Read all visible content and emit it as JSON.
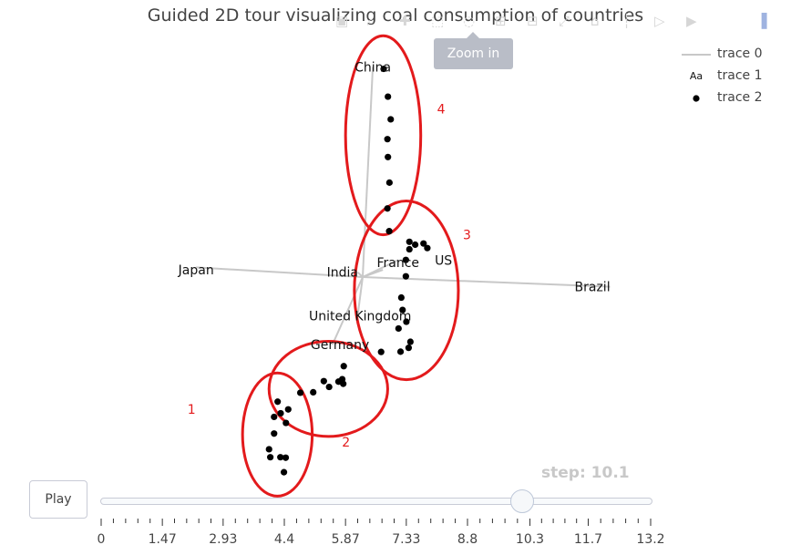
{
  "title": "Guided 2D tour visualizing coal consumption of countries",
  "tooltip": "Zoom in",
  "legend": [
    {
      "label": "trace 0",
      "symbol": "line"
    },
    {
      "label": "trace 1",
      "symbol": "text",
      "glyph": "Aa"
    },
    {
      "label": "trace 2",
      "symbol": "dot"
    }
  ],
  "modebar_icons": [
    "camera-icon",
    "zoom-icon",
    "pan-icon",
    "box-select-icon",
    "lasso-select-icon",
    "zoom-in-icon",
    "zoom-out-icon",
    "autoscale-icon",
    "reset-axes-icon",
    "spike-lines-icon",
    "hover-closest-icon",
    "hover-compare-icon",
    "plotly-logo-icon"
  ],
  "controls": {
    "play_label": "Play",
    "step_prefix": "step: ",
    "step_value": "10.1",
    "slider_ticks": [
      "0",
      "1.47",
      "2.93",
      "4.4",
      "5.87",
      "7.33",
      "8.8",
      "10.3",
      "11.7",
      "13.2"
    ],
    "slider_value": 10.1,
    "slider_min": 0,
    "slider_max": 13.2
  },
  "colors": {
    "points": "#000000",
    "axes_lines": "#c8c8c8",
    "annotation": "#e31a1c",
    "text": "#444444"
  },
  "chart_data": {
    "type": "scatter",
    "title": "Guided 2D tour visualizing coal consumption of countries",
    "xlim": [
      -1,
      1
    ],
    "ylim": [
      -1,
      1
    ],
    "axes_visible": false,
    "legend_position": "top-right",
    "axis_lines": [
      {
        "label": "China",
        "end": [
          0.04,
          0.87
        ]
      },
      {
        "label": "Japan",
        "end": [
          -0.66,
          0.04
        ]
      },
      {
        "label": "India",
        "end": [
          -0.02,
          0.02
        ]
      },
      {
        "label": "France",
        "end": [
          0.08,
          0.03
        ]
      },
      {
        "label": "US",
        "end": [
          0.14,
          0.07
        ]
      },
      {
        "label": "Brazil",
        "end": [
          0.98,
          -0.04
        ]
      },
      {
        "label": "United Kingdom",
        "end": [
          -0.02,
          -0.16
        ]
      },
      {
        "label": "Germany",
        "end": [
          -0.12,
          -0.28
        ]
      }
    ],
    "series": [
      {
        "type": "scatter",
        "points": [
          [
            0.083,
            0.862
          ],
          [
            0.1,
            0.747
          ],
          [
            0.111,
            0.653
          ],
          [
            0.098,
            0.571
          ],
          [
            0.1,
            0.497
          ],
          [
            0.106,
            0.391
          ],
          [
            0.098,
            0.284
          ],
          [
            0.105,
            0.19
          ],
          [
            0.185,
            0.146
          ],
          [
            0.241,
            0.139
          ],
          [
            0.208,
            0.134
          ],
          [
            0.256,
            0.12
          ],
          [
            0.185,
            0.115
          ],
          [
            0.171,
            0.071
          ],
          [
            0.171,
            0.003
          ],
          [
            0.153,
            -0.085
          ],
          [
            0.158,
            -0.136
          ],
          [
            0.173,
            -0.185
          ],
          [
            0.142,
            -0.213
          ],
          [
            0.189,
            -0.268
          ],
          [
            0.182,
            -0.293
          ],
          [
            0.15,
            -0.309
          ],
          [
            0.073,
            -0.31
          ],
          [
            -0.075,
            -0.369
          ],
          [
            -0.081,
            -0.423
          ],
          [
            -0.154,
            -0.431
          ],
          [
            -0.096,
            -0.433
          ],
          [
            -0.077,
            -0.442
          ],
          [
            -0.133,
            -0.455
          ],
          [
            -0.196,
            -0.477
          ],
          [
            -0.247,
            -0.479
          ],
          [
            -0.295,
            -0.548
          ],
          [
            -0.337,
            -0.516
          ],
          [
            -0.325,
            -0.564
          ],
          [
            -0.351,
            -0.579
          ],
          [
            -0.304,
            -0.604
          ],
          [
            -0.351,
            -0.648
          ],
          [
            -0.371,
            -0.713
          ],
          [
            -0.366,
            -0.746
          ],
          [
            -0.326,
            -0.746
          ],
          [
            -0.305,
            -0.748
          ],
          [
            -0.312,
            -0.808
          ]
        ]
      }
    ],
    "annotations": [
      {
        "label": "1",
        "center": [
          -0.338,
          -0.652
        ],
        "radii": [
          0.138,
          0.255
        ]
      },
      {
        "label": "2",
        "center": [
          -0.136,
          -0.463
        ],
        "radii": [
          0.235,
          0.197
        ]
      },
      {
        "label": "3",
        "center": [
          0.173,
          -0.055
        ],
        "radii": [
          0.206,
          0.37
        ]
      },
      {
        "label": "4",
        "center": [
          0.081,
          0.587
        ],
        "radii": [
          0.149,
          0.412
        ]
      }
    ]
  }
}
